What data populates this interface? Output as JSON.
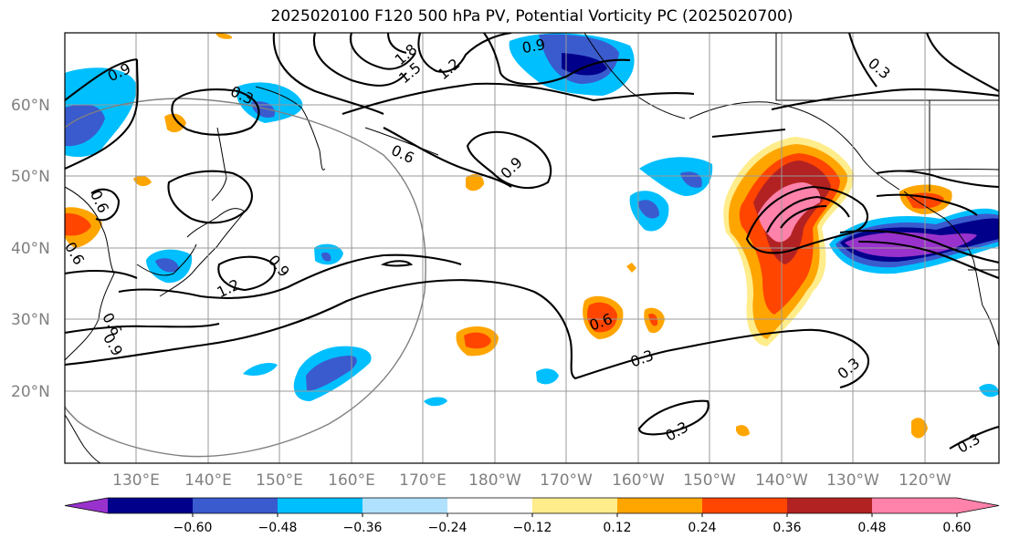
{
  "title": "2025020100 F120 500 hPa PV, Potential Vorticity PC (2025020700)",
  "lat_labels": [
    "60°N",
    "50°N",
    "40°N",
    "30°N",
    "20°N"
  ],
  "lon_labels": [
    "130°E",
    "140°E",
    "150°E",
    "160°E",
    "170°E",
    "180°W",
    "170°W",
    "160°W",
    "150°W",
    "140°W",
    "130°W",
    "120°W"
  ],
  "colorbar": {
    "colors": [
      "#9932cc",
      "#00008b",
      "#3a5bcd",
      "#00bfff",
      "#b0e2ff",
      "#ffffff",
      "#ffec8b",
      "#ffa500",
      "#ff4500",
      "#b22222",
      "#ff82ab"
    ],
    "tick_labels": [
      "−0.60",
      "−0.48",
      "−0.36",
      "−0.24",
      "−0.12",
      "0.12",
      "0.24",
      "0.36",
      "0.48",
      "0.60"
    ]
  },
  "contour_labels": [
    "0.9",
    "0.3",
    "1.8",
    "1.5",
    "1.2",
    "0.9",
    "0.6",
    "0.9",
    "0.6",
    "0.6",
    "0.9",
    "1.2",
    "0.6",
    "0.9",
    "0.3",
    "0.3",
    "0.6",
    "0.3",
    "0.3",
    "0.3"
  ]
}
